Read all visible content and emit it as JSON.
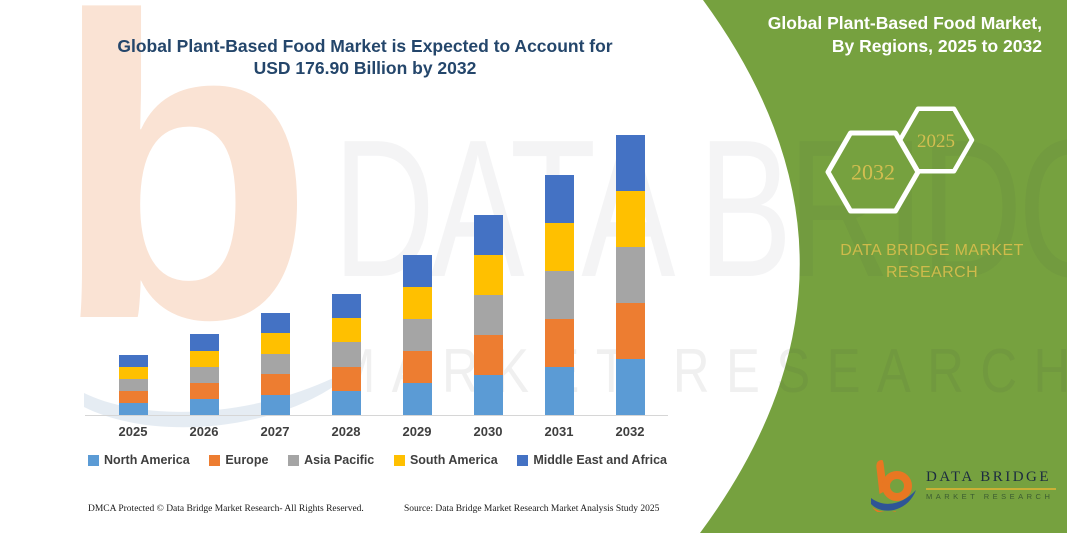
{
  "left": {
    "title_line1": "Global Plant-Based Food Market is Expected to Account for",
    "title_line2": "USD 176.90 Billion by 2032",
    "footer_left": "DMCA Protected © Data Bridge Market Research-  All Rights Reserved.",
    "footer_right": "Source: Data Bridge Market Research  Market Analysis Study 2025"
  },
  "right_panel": {
    "title": "Global Plant-Based Food Market, By Regions, 2025 to 2032",
    "hexagon_back_label": "2032",
    "hexagon_front_label": "2025",
    "brand_line1": "DATA BRIDGE MARKET",
    "brand_line2": "RESEARCH",
    "logo_title": "DATA BRIDGE",
    "logo_subtitle": "MARKET RESEARCH",
    "colors": {
      "panel_green": "#76a13f",
      "gold": "#d2be50",
      "white": "#ffffff"
    }
  },
  "watermarks": {
    "big_letter": "b",
    "row1": "DATA BRIDGE",
    "row2": "MARKET RESEARCH"
  },
  "chart_data": {
    "type": "bar",
    "stacked": true,
    "title": "Global Plant-Based Food Market is Expected to Account for USD 176.90 Billion by 2032",
    "unit": "USD Billion",
    "categories": [
      "2025",
      "2026",
      "2027",
      "2028",
      "2029",
      "2030",
      "2031",
      "2032"
    ],
    "series": [
      {
        "name": "North America",
        "color": "#5b9bd5",
        "values": [
          7.7,
          10.2,
          12.9,
          15.3,
          20.2,
          25.3,
          30.3,
          35.4
        ]
      },
      {
        "name": "Europe",
        "color": "#ed7d31",
        "values": [
          7.6,
          10.2,
          12.9,
          15.3,
          20.3,
          25.3,
          30.3,
          35.4
        ]
      },
      {
        "name": "Asia Pacific",
        "color": "#a5a5a5",
        "values": [
          7.6,
          10.2,
          12.8,
          15.3,
          20.2,
          25.3,
          30.3,
          35.4
        ]
      },
      {
        "name": "South America",
        "color": "#ffc000",
        "values": [
          7.7,
          10.1,
          12.9,
          15.2,
          20.3,
          25.4,
          30.2,
          35.3
        ]
      },
      {
        "name": "Middle East and Africa",
        "color": "#4472c4",
        "values": [
          7.6,
          10.2,
          12.8,
          15.3,
          20.2,
          25.3,
          30.3,
          35.4
        ]
      }
    ],
    "totals_estimated": [
      38.2,
      50.9,
      64.3,
      76.4,
      101.2,
      126.6,
      151.4,
      176.9
    ],
    "annotation_final_value": "USD 176.90 Billion by 2032",
    "xlabel": "",
    "ylabel": "",
    "ylim": [
      0,
      180
    ],
    "grid": false,
    "y_axis_shown": false,
    "legend_position": "bottom"
  }
}
